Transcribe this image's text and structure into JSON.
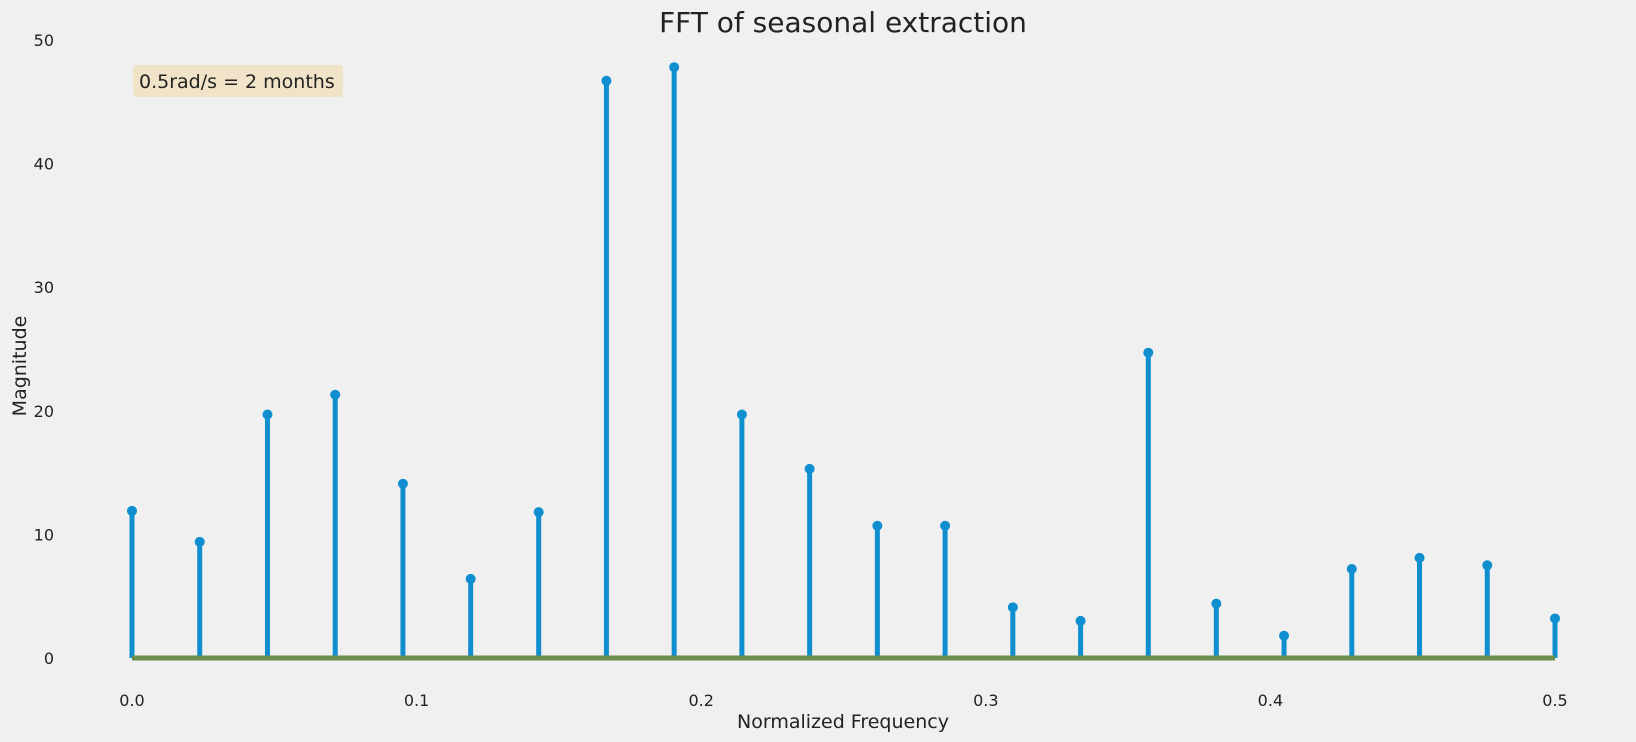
{
  "chart_data": {
    "type": "stem",
    "title": "FFT of seasonal extraction",
    "xlabel": "Normalized Frequency",
    "ylabel": "Magnitude",
    "xlim": [
      0.0,
      0.5
    ],
    "ylim": [
      0,
      50
    ],
    "xticks": [
      "0.0",
      "0.1",
      "0.2",
      "0.3",
      "0.4",
      "0.5"
    ],
    "yticks": [
      "0",
      "10",
      "20",
      "30",
      "40",
      "50"
    ],
    "grid": false,
    "annotation": "0.5rad/s = 2 months",
    "colors": {
      "stem": "#0f8fd0",
      "baseline": "#6b8e4e",
      "annotation_box": "#f1e3c8"
    },
    "series": [
      {
        "x": [
          0.0,
          0.0238,
          0.0476,
          0.0714,
          0.0952,
          0.119,
          0.1429,
          0.1667,
          0.1905,
          0.2143,
          0.2381,
          0.2619,
          0.2857,
          0.3095,
          0.3333,
          0.3571,
          0.381,
          0.4048,
          0.4286,
          0.4524,
          0.4762,
          0.5
        ],
        "values": [
          11.9,
          9.4,
          19.7,
          21.3,
          14.1,
          6.4,
          11.8,
          46.7,
          47.8,
          19.7,
          15.3,
          10.7,
          10.7,
          4.1,
          3.0,
          24.7,
          4.4,
          1.8,
          7.2,
          8.1,
          7.5,
          3.2
        ]
      }
    ]
  }
}
